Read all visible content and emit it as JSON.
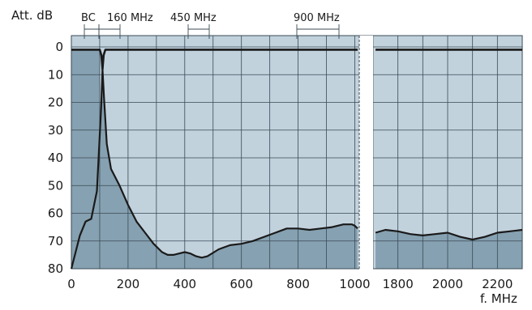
{
  "chart_data": {
    "type": "area",
    "ylabel": "Att. dB",
    "xlabel": "f. MHz",
    "y_inverted": true,
    "ylim": [
      0,
      80
    ],
    "y_ticks": [
      "0",
      "10",
      "20",
      "30",
      "40",
      "50",
      "60",
      "70",
      "80"
    ],
    "grid": true,
    "axis_break": {
      "left_range": [
        0,
        1000
      ],
      "right_range": [
        1700,
        2300
      ]
    },
    "x_ticks_left": [
      "0",
      "200",
      "400",
      "600",
      "800",
      "1000"
    ],
    "x_ticks_right": [
      "1800",
      "2000",
      "2200"
    ],
    "band_labels": [
      "BC",
      "160 MHz",
      "450 MHz",
      "900 MHz"
    ],
    "series": [
      {
        "points_left": [
          [
            0,
            80
          ],
          [
            30,
            68
          ],
          [
            50,
            63
          ],
          [
            70,
            62
          ],
          [
            90,
            52
          ],
          [
            105,
            22
          ],
          [
            110,
            8
          ],
          [
            115,
            18
          ],
          [
            125,
            35
          ],
          [
            140,
            44
          ],
          [
            170,
            50
          ],
          [
            200,
            57
          ],
          [
            230,
            63
          ],
          [
            260,
            67
          ],
          [
            290,
            71
          ],
          [
            320,
            74
          ],
          [
            340,
            75
          ],
          [
            360,
            75
          ],
          [
            380,
            74.5
          ],
          [
            400,
            74
          ],
          [
            420,
            74.5
          ],
          [
            440,
            75.5
          ],
          [
            460,
            76
          ],
          [
            480,
            75.5
          ],
          [
            520,
            73
          ],
          [
            560,
            71.5
          ],
          [
            600,
            71
          ],
          [
            640,
            70
          ],
          [
            680,
            68.5
          ],
          [
            720,
            67
          ],
          [
            760,
            65.5
          ],
          [
            800,
            65.5
          ],
          [
            840,
            66
          ],
          [
            880,
            65.5
          ],
          [
            920,
            65
          ],
          [
            960,
            64
          ],
          [
            990,
            64
          ],
          [
            1000,
            64.5
          ],
          [
            1010,
            65.5
          ]
        ],
        "points_right": [
          [
            1710,
            67
          ],
          [
            1750,
            66
          ],
          [
            1800,
            66.5
          ],
          [
            1850,
            67.5
          ],
          [
            1900,
            68
          ],
          [
            1950,
            67.5
          ],
          [
            2000,
            67
          ],
          [
            2050,
            68.5
          ],
          [
            2100,
            69.5
          ],
          [
            2150,
            68.5
          ],
          [
            2200,
            67
          ],
          [
            2250,
            66.5
          ],
          [
            2300,
            66
          ]
        ]
      },
      {
        "points_left": [
          [
            0,
            1
          ],
          [
            100,
            1
          ],
          [
            106,
            3
          ],
          [
            110,
            8
          ],
          [
            114,
            3
          ],
          [
            120,
            1
          ],
          [
            1010,
            1
          ]
        ],
        "points_right": [
          [
            1710,
            1
          ],
          [
            2300,
            1
          ]
        ]
      }
    ]
  },
  "colors": {
    "plot_light": "#c2d2dd",
    "plot_dark": "#86a1b1",
    "grid": "#3a4a55",
    "curve": "#1a1a1a"
  }
}
